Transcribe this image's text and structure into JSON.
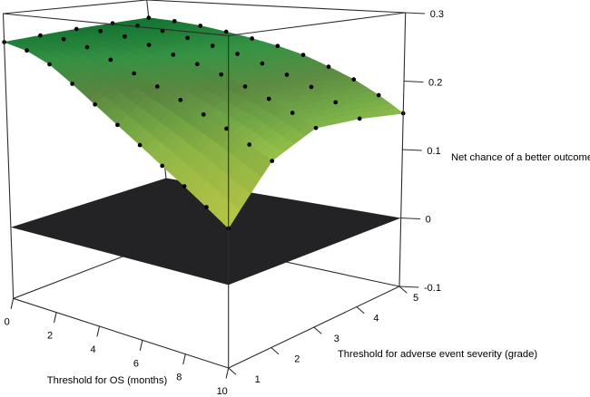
{
  "chart_data": {
    "type": "surface",
    "title": "",
    "xlabel": "Threshold for OS (months)",
    "ylabel": "Threshold for adverse event severity (grade)",
    "zlabel": "Net chance of a better outcome",
    "x": [
      0,
      1,
      2,
      3,
      4,
      5,
      6,
      7,
      8,
      9,
      10
    ],
    "y": [
      1,
      2,
      3,
      4,
      5
    ],
    "z": [
      [
        0.26,
        0.252,
        0.237,
        0.215,
        0.192,
        0.17,
        0.149,
        0.128,
        0.108,
        0.088,
        0.068
      ],
      [
        0.263,
        0.261,
        0.253,
        0.239,
        0.224,
        0.21,
        0.196,
        0.181,
        0.167,
        0.151,
        0.135
      ],
      [
        0.266,
        0.266,
        0.261,
        0.252,
        0.241,
        0.231,
        0.22,
        0.207,
        0.194,
        0.179,
        0.163
      ],
      [
        0.268,
        0.267,
        0.262,
        0.254,
        0.245,
        0.236,
        0.225,
        0.212,
        0.198,
        0.18,
        0.161
      ],
      [
        0.27,
        0.267,
        0.262,
        0.255,
        0.247,
        0.238,
        0.227,
        0.212,
        0.196,
        0.176,
        0.153
      ]
    ],
    "xlim": [
      0,
      10
    ],
    "ylim": [
      1,
      5
    ],
    "zlim": [
      -0.1,
      0.3
    ],
    "x_tick_labels": [
      "0",
      "2",
      "4",
      "6",
      "8",
      "10"
    ],
    "x_tick_values": [
      0,
      2,
      4,
      6,
      8,
      10
    ],
    "y_tick_labels": [
      "1",
      "2",
      "3",
      "4",
      "5"
    ],
    "y_tick_values": [
      1,
      2,
      3,
      4,
      5
    ],
    "z_tick_labels": [
      "-0.1",
      "0",
      "0.1",
      "0.2",
      "0.3"
    ],
    "z_tick_values": [
      -0.1,
      0,
      0.1,
      0.2,
      0.3
    ],
    "zero_plane": {
      "z": 0,
      "color": "#232326"
    },
    "colormap": [
      [
        0.068,
        "#c9d84d"
      ],
      [
        0.105,
        "#b2cc4a"
      ],
      [
        0.145,
        "#93bd48"
      ],
      [
        0.175,
        "#6fa445"
      ],
      [
        0.205,
        "#5a8640"
      ],
      [
        0.24,
        "#348e42"
      ],
      [
        0.27,
        "#147030"
      ]
    ],
    "dot_color": "#000000",
    "frame_color": "#2d2d2d",
    "legend": "none",
    "grid": "off"
  }
}
